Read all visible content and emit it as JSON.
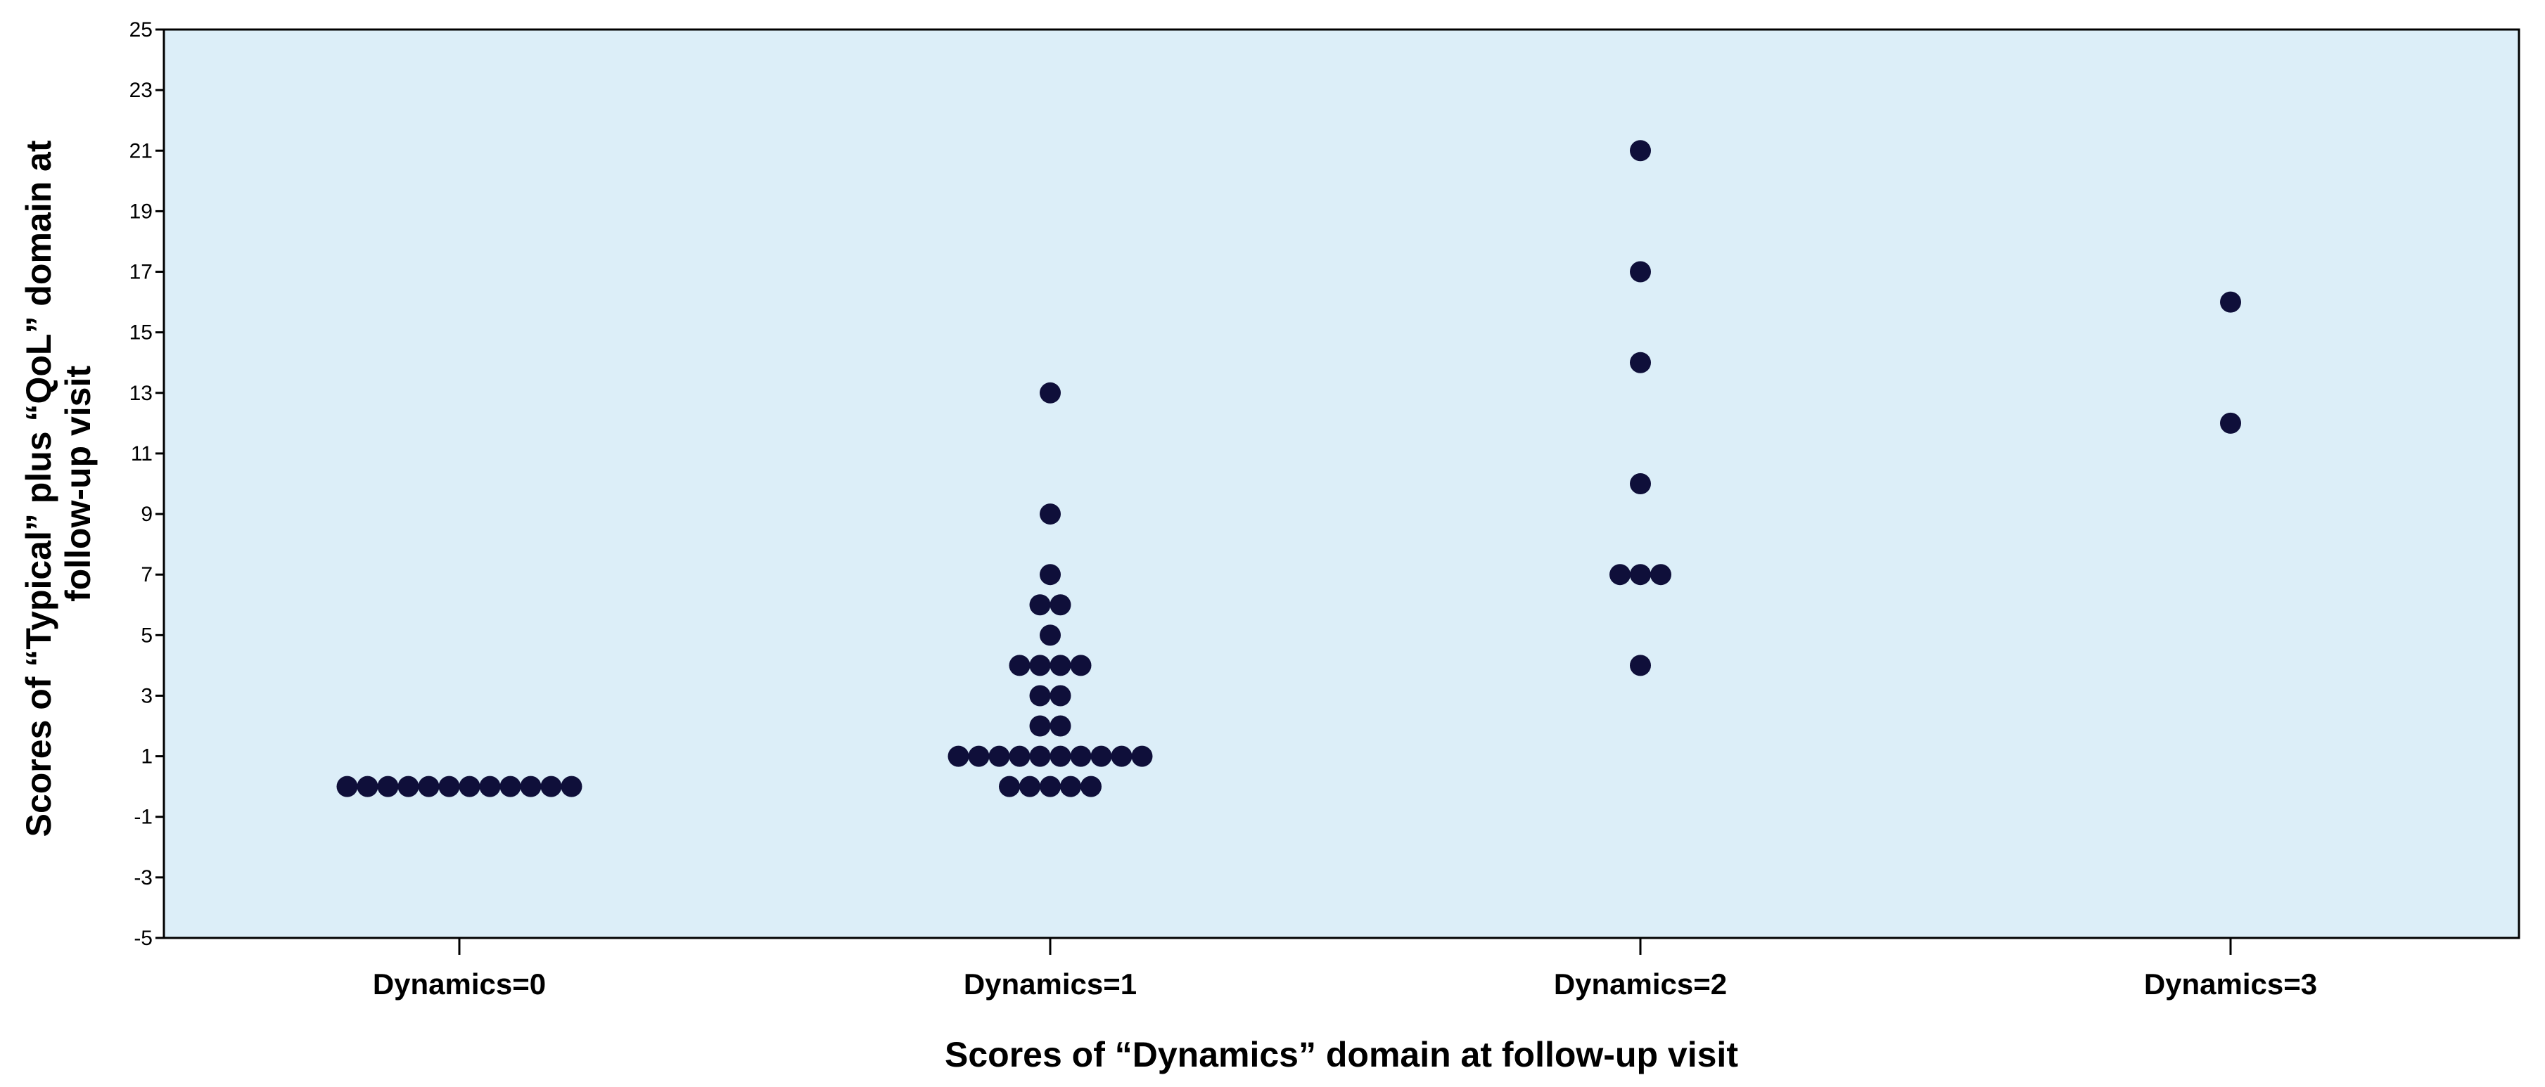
{
  "chart_data": {
    "type": "scatter",
    "subtype": "dot-plot",
    "title": "",
    "xlabel": "Scores of “Dynamics” domain at follow-up visit",
    "ylabel": [
      "Scores of “Typical” plus “QoL” domain at",
      "follow-up visit"
    ],
    "categories": [
      "Dynamics=0",
      "Dynamics=1",
      "Dynamics=2",
      "Dynamics=3"
    ],
    "ylim": [
      -5,
      25
    ],
    "yticks": [
      25,
      23,
      21,
      19,
      17,
      15,
      13,
      11,
      9,
      7,
      5,
      3,
      1,
      -1,
      -3,
      -5
    ],
    "grid": false,
    "plot_background": "#dceef8",
    "marker_color": "#0f0f3a",
    "groups": [
      {
        "category": "Dynamics=0",
        "values": [
          0,
          0,
          0,
          0,
          0,
          0,
          0,
          0,
          0,
          0,
          0,
          0
        ]
      },
      {
        "category": "Dynamics=1",
        "values": [
          0,
          0,
          0,
          0,
          0,
          1,
          1,
          1,
          1,
          1,
          1,
          1,
          1,
          1,
          1,
          2,
          2,
          3,
          3,
          4,
          4,
          4,
          4,
          5,
          6,
          6,
          7,
          9,
          13
        ]
      },
      {
        "category": "Dynamics=2",
        "values": [
          4,
          7,
          7,
          7,
          10,
          14,
          17,
          21
        ]
      },
      {
        "category": "Dynamics=3",
        "values": [
          12,
          16
        ]
      }
    ]
  }
}
